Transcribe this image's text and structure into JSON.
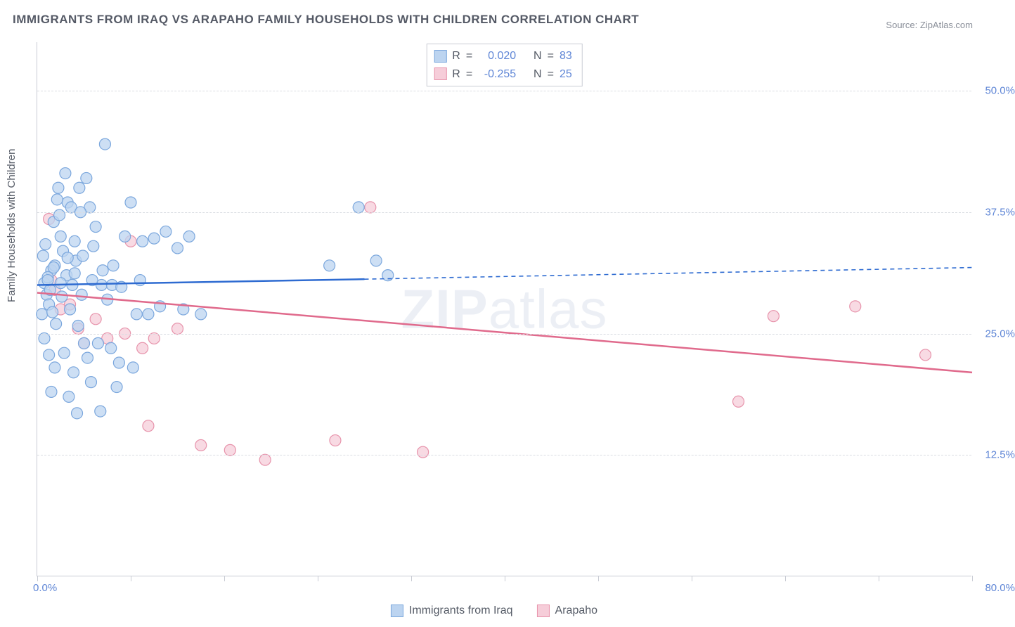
{
  "title": "IMMIGRANTS FROM IRAQ VS ARAPAHO FAMILY HOUSEHOLDS WITH CHILDREN CORRELATION CHART",
  "source_label": "Source:",
  "source_name": "ZipAtlas.com",
  "y_axis_label": "Family Households with Children",
  "watermark_bold": "ZIP",
  "watermark_thin": "atlas",
  "chart": {
    "type": "scatter",
    "xlim": [
      0,
      80
    ],
    "ylim": [
      0,
      55
    ],
    "x_tick_positions": [
      0,
      8,
      16,
      24,
      32,
      40,
      48,
      56,
      64,
      72,
      80
    ],
    "x_tick_labels": {
      "0": "0.0%",
      "80": "80.0%"
    },
    "y_grid_positions": [
      12.5,
      25.0,
      37.5,
      50.0
    ],
    "y_tick_labels": [
      "12.5%",
      "25.0%",
      "37.5%",
      "50.0%"
    ],
    "background_color": "#ffffff",
    "grid_color": "#d9dce2",
    "axis_color": "#c9ccd4",
    "tick_label_color": "#5f86d6",
    "series": [
      {
        "name": "Immigrants from Iraq",
        "marker_fill": "#bcd4f0",
        "marker_stroke": "#7ba7dd",
        "marker_radius": 8,
        "line_color": "#2e6bd1",
        "line_width": 2.5,
        "r_value": "0.020",
        "n_value": "83",
        "trend_solid": {
          "x1": 0,
          "y1": 30.0,
          "x2": 28,
          "y2": 30.6
        },
        "trend_dashed": {
          "x1": 28,
          "y1": 30.6,
          "x2": 80,
          "y2": 31.8
        },
        "points": [
          [
            0.8,
            29.0
          ],
          [
            0.6,
            30.2
          ],
          [
            1.0,
            28.0
          ],
          [
            1.2,
            31.5
          ],
          [
            0.4,
            27.0
          ],
          [
            1.5,
            32.0
          ],
          [
            0.9,
            30.8
          ],
          [
            1.1,
            29.5
          ],
          [
            2.0,
            35.0
          ],
          [
            2.2,
            33.5
          ],
          [
            2.5,
            31.0
          ],
          [
            3.0,
            30.0
          ],
          [
            3.3,
            32.5
          ],
          [
            3.8,
            29.0
          ],
          [
            4.5,
            38.0
          ],
          [
            5.0,
            36.0
          ],
          [
            1.3,
            27.2
          ],
          [
            1.6,
            26.0
          ],
          [
            2.1,
            28.8
          ],
          [
            2.8,
            27.5
          ],
          [
            3.5,
            25.8
          ],
          [
            4.0,
            24.0
          ],
          [
            0.5,
            33.0
          ],
          [
            0.7,
            34.2
          ],
          [
            1.4,
            36.5
          ],
          [
            1.9,
            37.2
          ],
          [
            2.6,
            38.5
          ],
          [
            3.2,
            34.5
          ],
          [
            4.8,
            34.0
          ],
          [
            5.5,
            30.0
          ],
          [
            6.0,
            28.5
          ],
          [
            6.5,
            32.0
          ],
          [
            7.5,
            35.0
          ],
          [
            8.0,
            38.5
          ],
          [
            8.5,
            27.0
          ],
          [
            9.0,
            34.5
          ],
          [
            10.0,
            34.8
          ],
          [
            11.0,
            35.5
          ],
          [
            12.0,
            33.8
          ],
          [
            13.0,
            35.0
          ],
          [
            1.8,
            40.0
          ],
          [
            2.4,
            41.5
          ],
          [
            3.6,
            40.0
          ],
          [
            4.2,
            41.0
          ],
          [
            5.8,
            44.5
          ],
          [
            1.7,
            38.8
          ],
          [
            2.9,
            38.0
          ],
          [
            3.7,
            37.5
          ],
          [
            0.6,
            24.5
          ],
          [
            1.0,
            22.8
          ],
          [
            1.5,
            21.5
          ],
          [
            2.3,
            23.0
          ],
          [
            3.1,
            21.0
          ],
          [
            4.3,
            22.5
          ],
          [
            5.2,
            24.0
          ],
          [
            6.3,
            23.5
          ],
          [
            7.0,
            22.0
          ],
          [
            8.2,
            21.5
          ],
          [
            9.5,
            27.0
          ],
          [
            10.5,
            27.8
          ],
          [
            12.5,
            27.5
          ],
          [
            14.0,
            27.0
          ],
          [
            1.2,
            19.0
          ],
          [
            2.7,
            18.5
          ],
          [
            4.6,
            20.0
          ],
          [
            6.8,
            19.5
          ],
          [
            5.4,
            17.0
          ],
          [
            3.4,
            16.8
          ],
          [
            0.9,
            30.5
          ],
          [
            1.4,
            31.8
          ],
          [
            2.0,
            30.2
          ],
          [
            2.6,
            32.8
          ],
          [
            3.2,
            31.2
          ],
          [
            3.9,
            33.0
          ],
          [
            4.7,
            30.5
          ],
          [
            5.6,
            31.5
          ],
          [
            6.4,
            30.0
          ],
          [
            7.2,
            29.8
          ],
          [
            8.8,
            30.5
          ],
          [
            25.0,
            32.0
          ],
          [
            27.5,
            38.0
          ],
          [
            29.0,
            32.5
          ],
          [
            30.0,
            31.0
          ]
        ]
      },
      {
        "name": "Arapaho",
        "marker_fill": "#f6cdd9",
        "marker_stroke": "#e793ab",
        "marker_radius": 8,
        "line_color": "#e06a8c",
        "line_width": 2.5,
        "r_value": "-0.255",
        "n_value": "25",
        "trend_solid": {
          "x1": 0,
          "y1": 29.2,
          "x2": 80,
          "y2": 21.0
        },
        "points": [
          [
            1.0,
            36.8
          ],
          [
            1.5,
            29.5
          ],
          [
            2.0,
            27.5
          ],
          [
            2.8,
            28.0
          ],
          [
            3.5,
            25.5
          ],
          [
            4.0,
            24.0
          ],
          [
            5.0,
            26.5
          ],
          [
            6.0,
            24.5
          ],
          [
            7.5,
            25.0
          ],
          [
            9.0,
            23.5
          ],
          [
            10.0,
            24.5
          ],
          [
            12.0,
            25.5
          ],
          [
            8.0,
            34.5
          ],
          [
            14.0,
            13.5
          ],
          [
            16.5,
            13.0
          ],
          [
            19.5,
            12.0
          ],
          [
            25.5,
            14.0
          ],
          [
            33.0,
            12.8
          ],
          [
            28.5,
            38.0
          ],
          [
            63.0,
            26.8
          ],
          [
            70.0,
            27.8
          ],
          [
            76.0,
            22.8
          ],
          [
            60.0,
            18.0
          ],
          [
            9.5,
            15.5
          ],
          [
            1.2,
            30.5
          ]
        ]
      }
    ]
  },
  "legend_top_labels": {
    "R": "R",
    "equals": "=",
    "N": "N"
  },
  "legend_bottom": [
    {
      "swatch_fill": "#bcd4f0",
      "swatch_stroke": "#7ba7dd",
      "label": "Immigrants from Iraq"
    },
    {
      "swatch_fill": "#f6cdd9",
      "swatch_stroke": "#e793ab",
      "label": "Arapaho"
    }
  ]
}
